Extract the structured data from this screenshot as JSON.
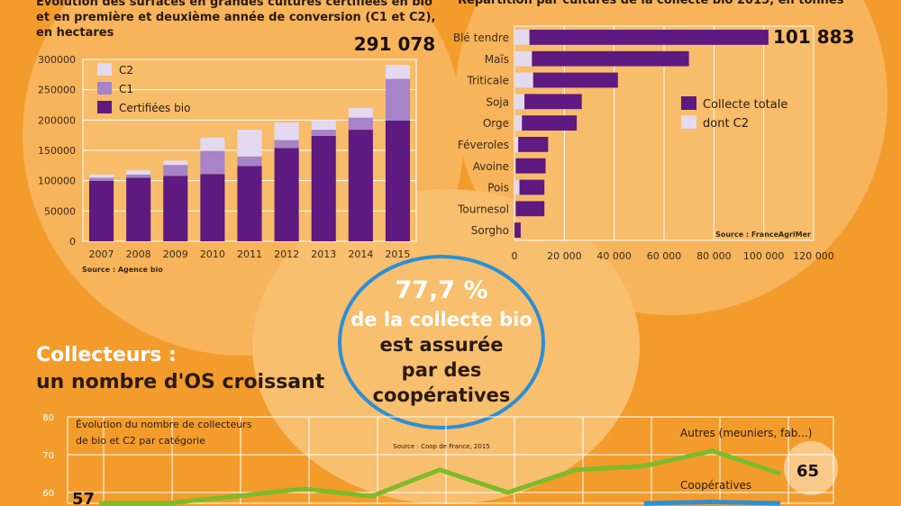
{
  "chart_data": [
    {
      "type": "bar",
      "stacked": true,
      "title": "Évolution des surfaces en grandes cultures certifiées en bio et en première et deuxième année de conversion (C1 et C2), en hectares",
      "categories": [
        "2007",
        "2008",
        "2009",
        "2010",
        "2011",
        "2012",
        "2013",
        "2014",
        "2015"
      ],
      "series": [
        {
          "name": "Certifiées bio",
          "color": "#5e1a80",
          "values": [
            100000,
            105000,
            108000,
            111000,
            124000,
            154000,
            174000,
            184000,
            199000
          ]
        },
        {
          "name": "C1",
          "color": "#a783c7",
          "values": [
            5000,
            5000,
            18000,
            38000,
            16000,
            13000,
            10000,
            20000,
            69000
          ]
        },
        {
          "name": "C2",
          "color": "#e3daf0",
          "values": [
            5000,
            7000,
            7000,
            22000,
            44000,
            29000,
            16000,
            16000,
            23078
          ]
        }
      ],
      "legend_order": [
        "C2",
        "C1",
        "Certifiées bio"
      ],
      "ylim": [
        0,
        300000
      ],
      "yticks": [
        "0",
        "50000",
        "100000",
        "150000",
        "200000",
        "250000",
        "300000"
      ],
      "annotation": "291 078",
      "source": "Source : Agence bio"
    },
    {
      "type": "bar",
      "orientation": "horizontal",
      "title": "Répartition par cultures de la collecte bio 2015, en tonnes",
      "categories": [
        "Blé tendre",
        "Maïs",
        "Triticale",
        "Soja",
        "Orge",
        "Féveroles",
        "Avoine",
        "Pois",
        "Tournesol",
        "Sorgho"
      ],
      "series": [
        {
          "name": "Collecte totale",
          "color": "#5e1a80",
          "values": [
            101883,
            70000,
            41500,
            27000,
            25000,
            13500,
            12500,
            12000,
            12000,
            2500
          ]
        },
        {
          "name": "dont C2",
          "color": "#e3daf0",
          "values": [
            6000,
            7000,
            7500,
            4000,
            3000,
            1500,
            500,
            2000,
            500,
            0
          ]
        }
      ],
      "xlim": [
        0,
        120000
      ],
      "xticks": [
        "0",
        "20 000",
        "40 000",
        "60 000",
        "80 000",
        "100 000",
        "120 000"
      ],
      "annotation": "101 883",
      "source": "Source : FranceAgriMer"
    },
    {
      "type": "line",
      "title": "Évolution du nombre de collecteurs de bio et C2 par catégorie",
      "ylim": [
        50,
        80
      ],
      "yticks": [
        "60",
        "70",
        "80"
      ],
      "series": [
        {
          "name": "Autres (meuniers, fab...)",
          "color": "#7dbb2a",
          "values": [
            57,
            54,
            59,
            61,
            59,
            66,
            60,
            66,
            67,
            71,
            65
          ]
        },
        {
          "name": "Coopératives",
          "color": "#2b8fd6",
          "values": [
            null,
            null,
            null,
            null,
            null,
            null,
            null,
            null,
            56,
            57.5,
            55
          ]
        }
      ],
      "labels": {
        "start": "57",
        "end": "65"
      },
      "source": "Source : Coop de France, 2015"
    }
  ],
  "center": {
    "pct": "77,7 %",
    "line1": "de la collecte bio",
    "line2": "est assurée",
    "line3": "par des",
    "line4": "coopératives"
  },
  "section": {
    "title1": "Collecteurs :",
    "title2": "un nombre d'OS croissant"
  },
  "titles": {
    "left_1": "Évolution des surfaces en grandes cultures certifiées en bio",
    "left_2": "et en première et deuxième année de conversion (C1 et C2),",
    "left_3": "en hectares",
    "right": "Répartition par cultures de la collecte bio 2015, en tonnes"
  }
}
